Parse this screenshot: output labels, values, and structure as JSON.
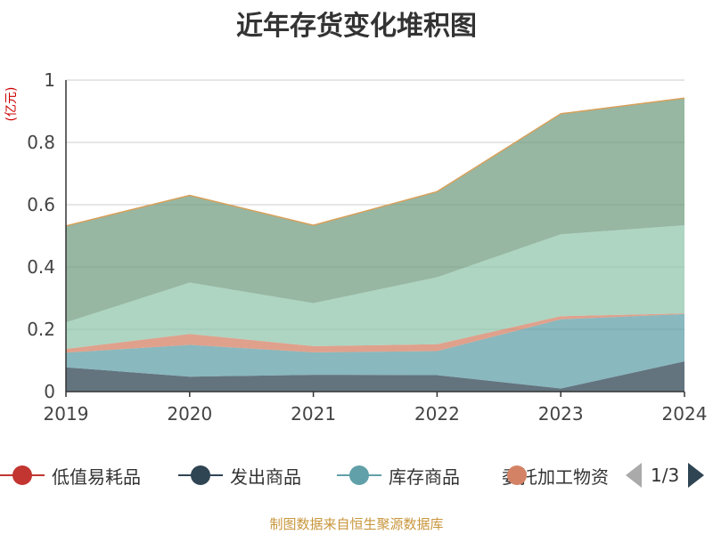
{
  "chart_data": {
    "type": "area",
    "title": "近年存货变化堆积图",
    "ylabel": "(亿元)",
    "xlabel": "",
    "x": [
      "2019",
      "2020",
      "2021",
      "2022",
      "2023",
      "2024"
    ],
    "ylim": [
      0,
      1
    ],
    "yticks": [
      "0",
      "0.2",
      "0.4",
      "0.6",
      "0.8",
      "1"
    ],
    "stacked": true,
    "grid": true,
    "series": [
      {
        "name": "低值易耗品",
        "color": "#c23531",
        "values": [
          0,
          0,
          0,
          0,
          0,
          0
        ]
      },
      {
        "name": "发出商品",
        "color": "#2f4554",
        "values": [
          0.078,
          0.048,
          0.054,
          0.053,
          0.01,
          0.097
        ]
      },
      {
        "name": "库存商品",
        "color": "#61a0a8",
        "values": [
          0.047,
          0.102,
          0.072,
          0.077,
          0.222,
          0.152
        ]
      },
      {
        "name": "委托加工物资",
        "color": "#d48265",
        "values": [
          0.012,
          0.035,
          0.02,
          0.022,
          0.01,
          0.002
        ]
      },
      {
        "name": "",
        "color": "#91c7ae",
        "values": [
          0.085,
          0.165,
          0.138,
          0.215,
          0.263,
          0.283
        ]
      },
      {
        "name": "",
        "color": "#749f83",
        "values": [
          0.31,
          0.28,
          0.25,
          0.275,
          0.387,
          0.408
        ]
      }
    ],
    "legend": {
      "position": "bottom",
      "page": "1/3"
    }
  },
  "source": "制图数据来自恒生聚源数据库"
}
